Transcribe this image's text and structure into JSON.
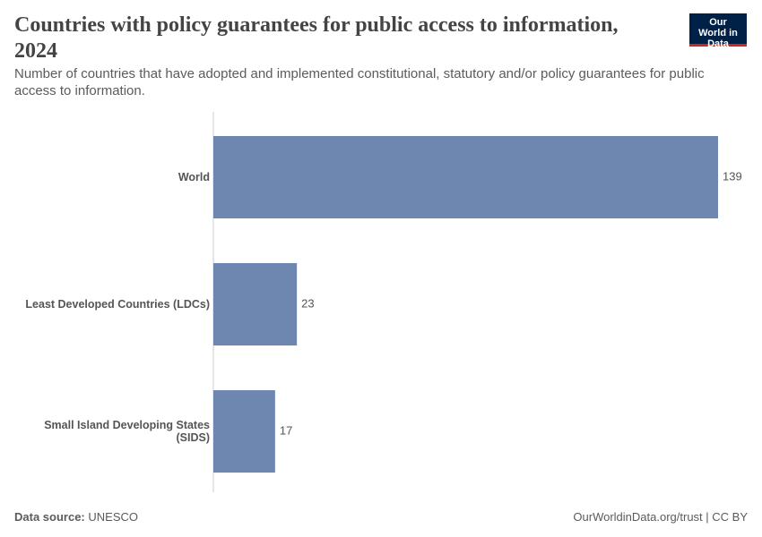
{
  "chart_data": {
    "type": "hbar",
    "title": "Countries with policy guarantees for public access to information, 2024",
    "subtitle": "Number of countries that have adopted and implemented constitutional, statutory and/or policy guarantees for public access to information.",
    "logo": "Our World in Data",
    "categories": [
      "World",
      "Least Developed Countries (LDCs)",
      "Small Island Developing States (SIDS)"
    ],
    "values": [
      139,
      23,
      17
    ],
    "color": "#6d87b0",
    "xlim": [
      0,
      139
    ],
    "source": {
      "label": "Data source:",
      "value": "UNESCO"
    },
    "license": "OurWorldinData.org/trust | CC BY"
  }
}
